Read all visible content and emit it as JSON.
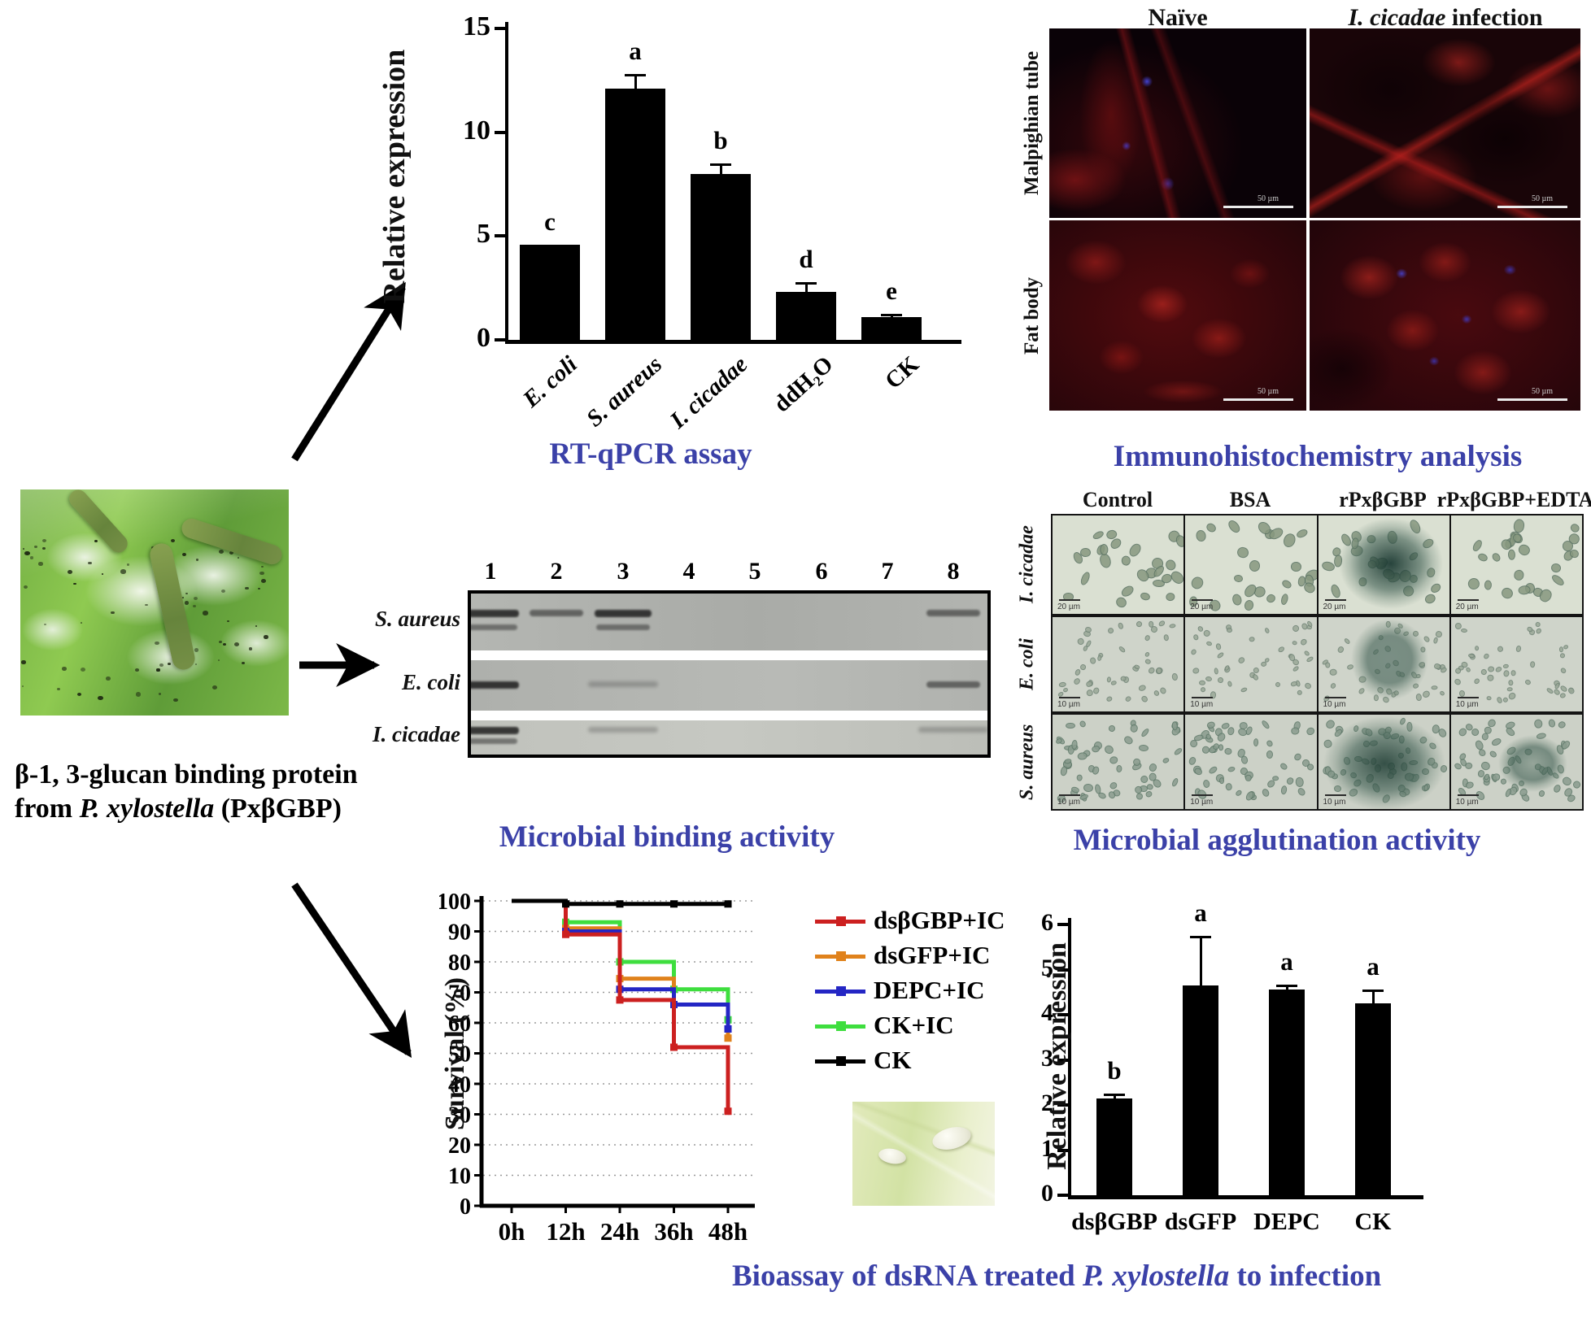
{
  "intro": {
    "line1": "β-1, 3-glucan binding protein",
    "line2_prefix": "from ",
    "line2_italic": "P. xylostella",
    "line2_suffix": " (PxβGBP)"
  },
  "colors": {
    "caption_blue": "#3b41a8",
    "series_red": "#cc2020",
    "series_orange": "#e0821c",
    "series_blue": "#2426c4",
    "series_green": "#3ede3e",
    "series_black": "#000000"
  },
  "panels": {
    "rtqpcr": {
      "caption": "RT-qPCR assay"
    },
    "ihc": {
      "caption": "Immunohistochemistry analysis",
      "columns": [
        {
          "italic": "",
          "normal": "Naïve"
        },
        {
          "italic": "I. cicadae",
          "normal": " infection"
        }
      ],
      "row_labels": [
        "Malpighian tube",
        "Fat body"
      ],
      "scale_label": "50 µm"
    },
    "binding": {
      "caption": "Microbial binding activity",
      "lane_numbers": [
        "1",
        "2",
        "3",
        "4",
        "5",
        "6",
        "7",
        "8"
      ],
      "row_labels": [
        "S. aureus",
        "E. coli",
        "I. cicadae"
      ],
      "bands": [
        {
          "row": 0,
          "lane": 0,
          "strength": "strong"
        },
        {
          "row": 0,
          "lane": 1,
          "strength": "medium"
        },
        {
          "row": 0,
          "lane": 2,
          "strength": "strong"
        },
        {
          "row": 0,
          "lane": 7,
          "strength": "medium"
        },
        {
          "row": 1,
          "lane": 0,
          "strength": "strong"
        },
        {
          "row": 1,
          "lane": 2,
          "strength": "faint"
        },
        {
          "row": 1,
          "lane": 7,
          "strength": "medium"
        },
        {
          "row": 2,
          "lane": 0,
          "strength": "strong"
        },
        {
          "row": 2,
          "lane": 2,
          "strength": "faint"
        },
        {
          "row": 2,
          "lane": 7,
          "strength": "faint"
        }
      ]
    },
    "agglutination": {
      "caption": "Microbial agglutination activity",
      "column_headers": [
        "Control",
        "BSA",
        "rPxβGBP",
        "rPxβGBP+EDTA"
      ],
      "row_labels": [
        "I. cicadae",
        "E. coli",
        "S. aureus"
      ],
      "scale_labels": [
        "20 µm",
        "10 µm",
        "10 µm"
      ],
      "agglutinated_cells": [
        {
          "row": 0,
          "col": 2,
          "size": "large"
        },
        {
          "row": 1,
          "col": 2,
          "size": "medium"
        },
        {
          "row": 2,
          "col": 2,
          "size": "xlarge"
        },
        {
          "row": 2,
          "col": 3,
          "size": "small"
        }
      ]
    },
    "bioassay": {
      "caption_prefix": "Bioassay of dsRNA treated ",
      "caption_italic": "P. xylostella",
      "caption_suffix": " to infection"
    }
  },
  "chart_data": [
    {
      "id": "rtqpcr",
      "type": "bar",
      "title": "RT-qPCR assay",
      "xlabel": "",
      "ylabel": "Relative expression",
      "ylim": [
        0,
        15
      ],
      "yticks": [
        0,
        5,
        10,
        15
      ],
      "categories": [
        "E. coli",
        "S. aureus",
        "I. cicadae",
        "ddH₂O",
        "CK"
      ],
      "italic_flags": [
        true,
        true,
        true,
        false,
        false
      ],
      "values": [
        4.6,
        12.1,
        8.0,
        2.3,
        1.1
      ],
      "errors": [
        0,
        0.7,
        0.5,
        0.5,
        0.15
      ],
      "letters": [
        "c",
        "a",
        "b",
        "d",
        "e"
      ]
    },
    {
      "id": "survival",
      "type": "step-line",
      "title": "",
      "xlabel": "",
      "ylabel": "Survival (%)",
      "ylim": [
        0,
        100
      ],
      "yticks": [
        0,
        10,
        20,
        30,
        40,
        50,
        60,
        70,
        80,
        90,
        100
      ],
      "x_categories": [
        "0h",
        "12h",
        "24h",
        "36h",
        "48h"
      ],
      "grid": "dotted-horizontal",
      "legend_position": "right",
      "series": [
        {
          "name": "dsβGBP+IC",
          "color": "#cc2020",
          "values": [
            100,
            89,
            67.5,
            52,
            31
          ]
        },
        {
          "name": "dsGFP+IC",
          "color": "#e0821c",
          "values": [
            100,
            91,
            74.5,
            66,
            55
          ]
        },
        {
          "name": "DEPC+IC",
          "color": "#2426c4",
          "values": [
            100,
            90,
            71,
            66,
            58
          ]
        },
        {
          "name": "CK+IC",
          "color": "#3ede3e",
          "values": [
            100,
            93,
            80,
            71,
            61
          ]
        },
        {
          "name": "CK",
          "color": "#000000",
          "values": [
            100,
            99,
            99,
            99,
            99
          ]
        }
      ]
    },
    {
      "id": "rnai",
      "type": "bar",
      "title": "",
      "xlabel": "",
      "ylabel": "Relative expression",
      "ylim": [
        0,
        6
      ],
      "yticks": [
        0,
        1,
        2,
        3,
        4,
        5,
        6
      ],
      "categories": [
        "dsβGBP",
        "dsGFP",
        "DEPC",
        "CK"
      ],
      "italic_flags": [
        false,
        false,
        false,
        false
      ],
      "values": [
        2.15,
        4.65,
        4.55,
        4.25
      ],
      "errors": [
        0.1,
        1.1,
        0.12,
        0.3
      ],
      "letters": [
        "b",
        "a",
        "a",
        "a"
      ]
    }
  ]
}
